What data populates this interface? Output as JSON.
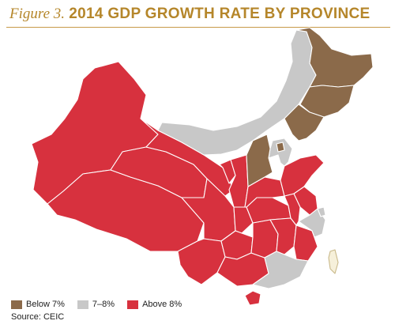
{
  "figure": {
    "label": "Figure 3.",
    "title": "2014 GDP GROWTH RATE BY PROVINCE"
  },
  "legend": [
    {
      "label": "Below 7%",
      "color": "#8b6a4a"
    },
    {
      "label": "7–8%",
      "color": "#c8c8c8"
    },
    {
      "label": "Above 8%",
      "color": "#d7313e"
    }
  ],
  "source": "Source: CEIC",
  "colors": {
    "accent": "#b5862a",
    "rule": "#c89a48",
    "taiwan": "#f6f0da",
    "border": "#ffffff"
  }
}
